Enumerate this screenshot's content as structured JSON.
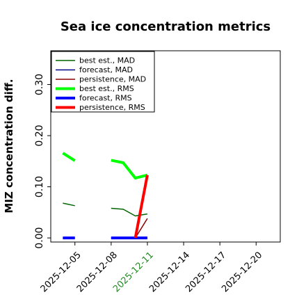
{
  "chart_data": {
    "type": "line",
    "title": "Sea ice concentration metrics",
    "ylabel": "MIZ concentration diff.",
    "xlabel": "",
    "x_dates": [
      "2025-12-04",
      "2025-12-05",
      "2025-12-06",
      "2025-12-07",
      "2025-12-08",
      "2025-12-09",
      "2025-12-10",
      "2025-12-11"
    ],
    "xlim": [
      "2025-12-03",
      "2025-12-22"
    ],
    "ylim": [
      -0.008,
      0.366
    ],
    "xticks": [
      "2025-12-05",
      "2025-12-08",
      "2025-12-11",
      "2025-12-14",
      "2025-12-17",
      "2025-12-20"
    ],
    "xtick_highlight": "2025-12-11",
    "xtick_highlight_color": "#228b22",
    "yticks": [
      0.0,
      0.1,
      0.2,
      0.3
    ],
    "ytick_labels": [
      "0.00",
      "0.10",
      "0.20",
      "0.30"
    ],
    "legend_position": "upper-left",
    "grid": false,
    "series": [
      {
        "name": "best est., MAD",
        "color": "#006400",
        "width": 1.5,
        "values": [
          0.068,
          0.063,
          null,
          null,
          0.058,
          0.056,
          0.043,
          0.047
        ]
      },
      {
        "name": "forecast,  MAD",
        "color": "#00008b",
        "width": 1.5,
        "values": [
          0.0,
          0.0,
          null,
          null,
          0.0,
          0.0,
          0.0,
          0.0
        ]
      },
      {
        "name": "persistence, MAD",
        "color": "#8b0000",
        "width": 1.5,
        "values": [
          null,
          null,
          null,
          null,
          null,
          null,
          0.0,
          0.038
        ]
      },
      {
        "name": "best est., RMS",
        "color": "#00ff00",
        "width": 4,
        "values": [
          0.166,
          0.151,
          null,
          null,
          0.152,
          0.147,
          0.117,
          0.123
        ]
      },
      {
        "name": "forecast,  RMS",
        "color": "#0000ff",
        "width": 4,
        "values": [
          0.0,
          0.0,
          null,
          null,
          0.0,
          0.0,
          0.0,
          0.0
        ]
      },
      {
        "name": "persistence, RMS",
        "color": "#ff0000",
        "width": 4,
        "values": [
          null,
          null,
          null,
          null,
          null,
          null,
          0.0,
          0.123
        ]
      }
    ]
  }
}
